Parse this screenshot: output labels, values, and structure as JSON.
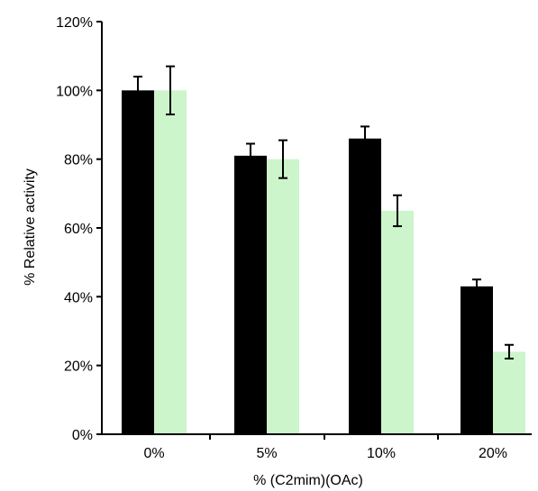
{
  "chart_data": {
    "type": "bar",
    "title": "",
    "xlabel": "% (C2mim)(OAc)",
    "ylabel": "% Relative activity",
    "categories": [
      "0%",
      "5%",
      "10%",
      "20%"
    ],
    "ylim": [
      0,
      120
    ],
    "yticks": [
      "0%",
      "20%",
      "40%",
      "60%",
      "80%",
      "100%",
      "120%"
    ],
    "grid": false,
    "legend": "none",
    "series": [
      {
        "color": "#000000",
        "values": [
          100,
          81,
          86,
          43
        ],
        "errors": [
          4,
          3.5,
          3.5,
          2
        ]
      },
      {
        "color": "#ccf5cc",
        "values": [
          100,
          80,
          65,
          24
        ],
        "errors": [
          7,
          5.5,
          4.5,
          2
        ]
      }
    ]
  }
}
